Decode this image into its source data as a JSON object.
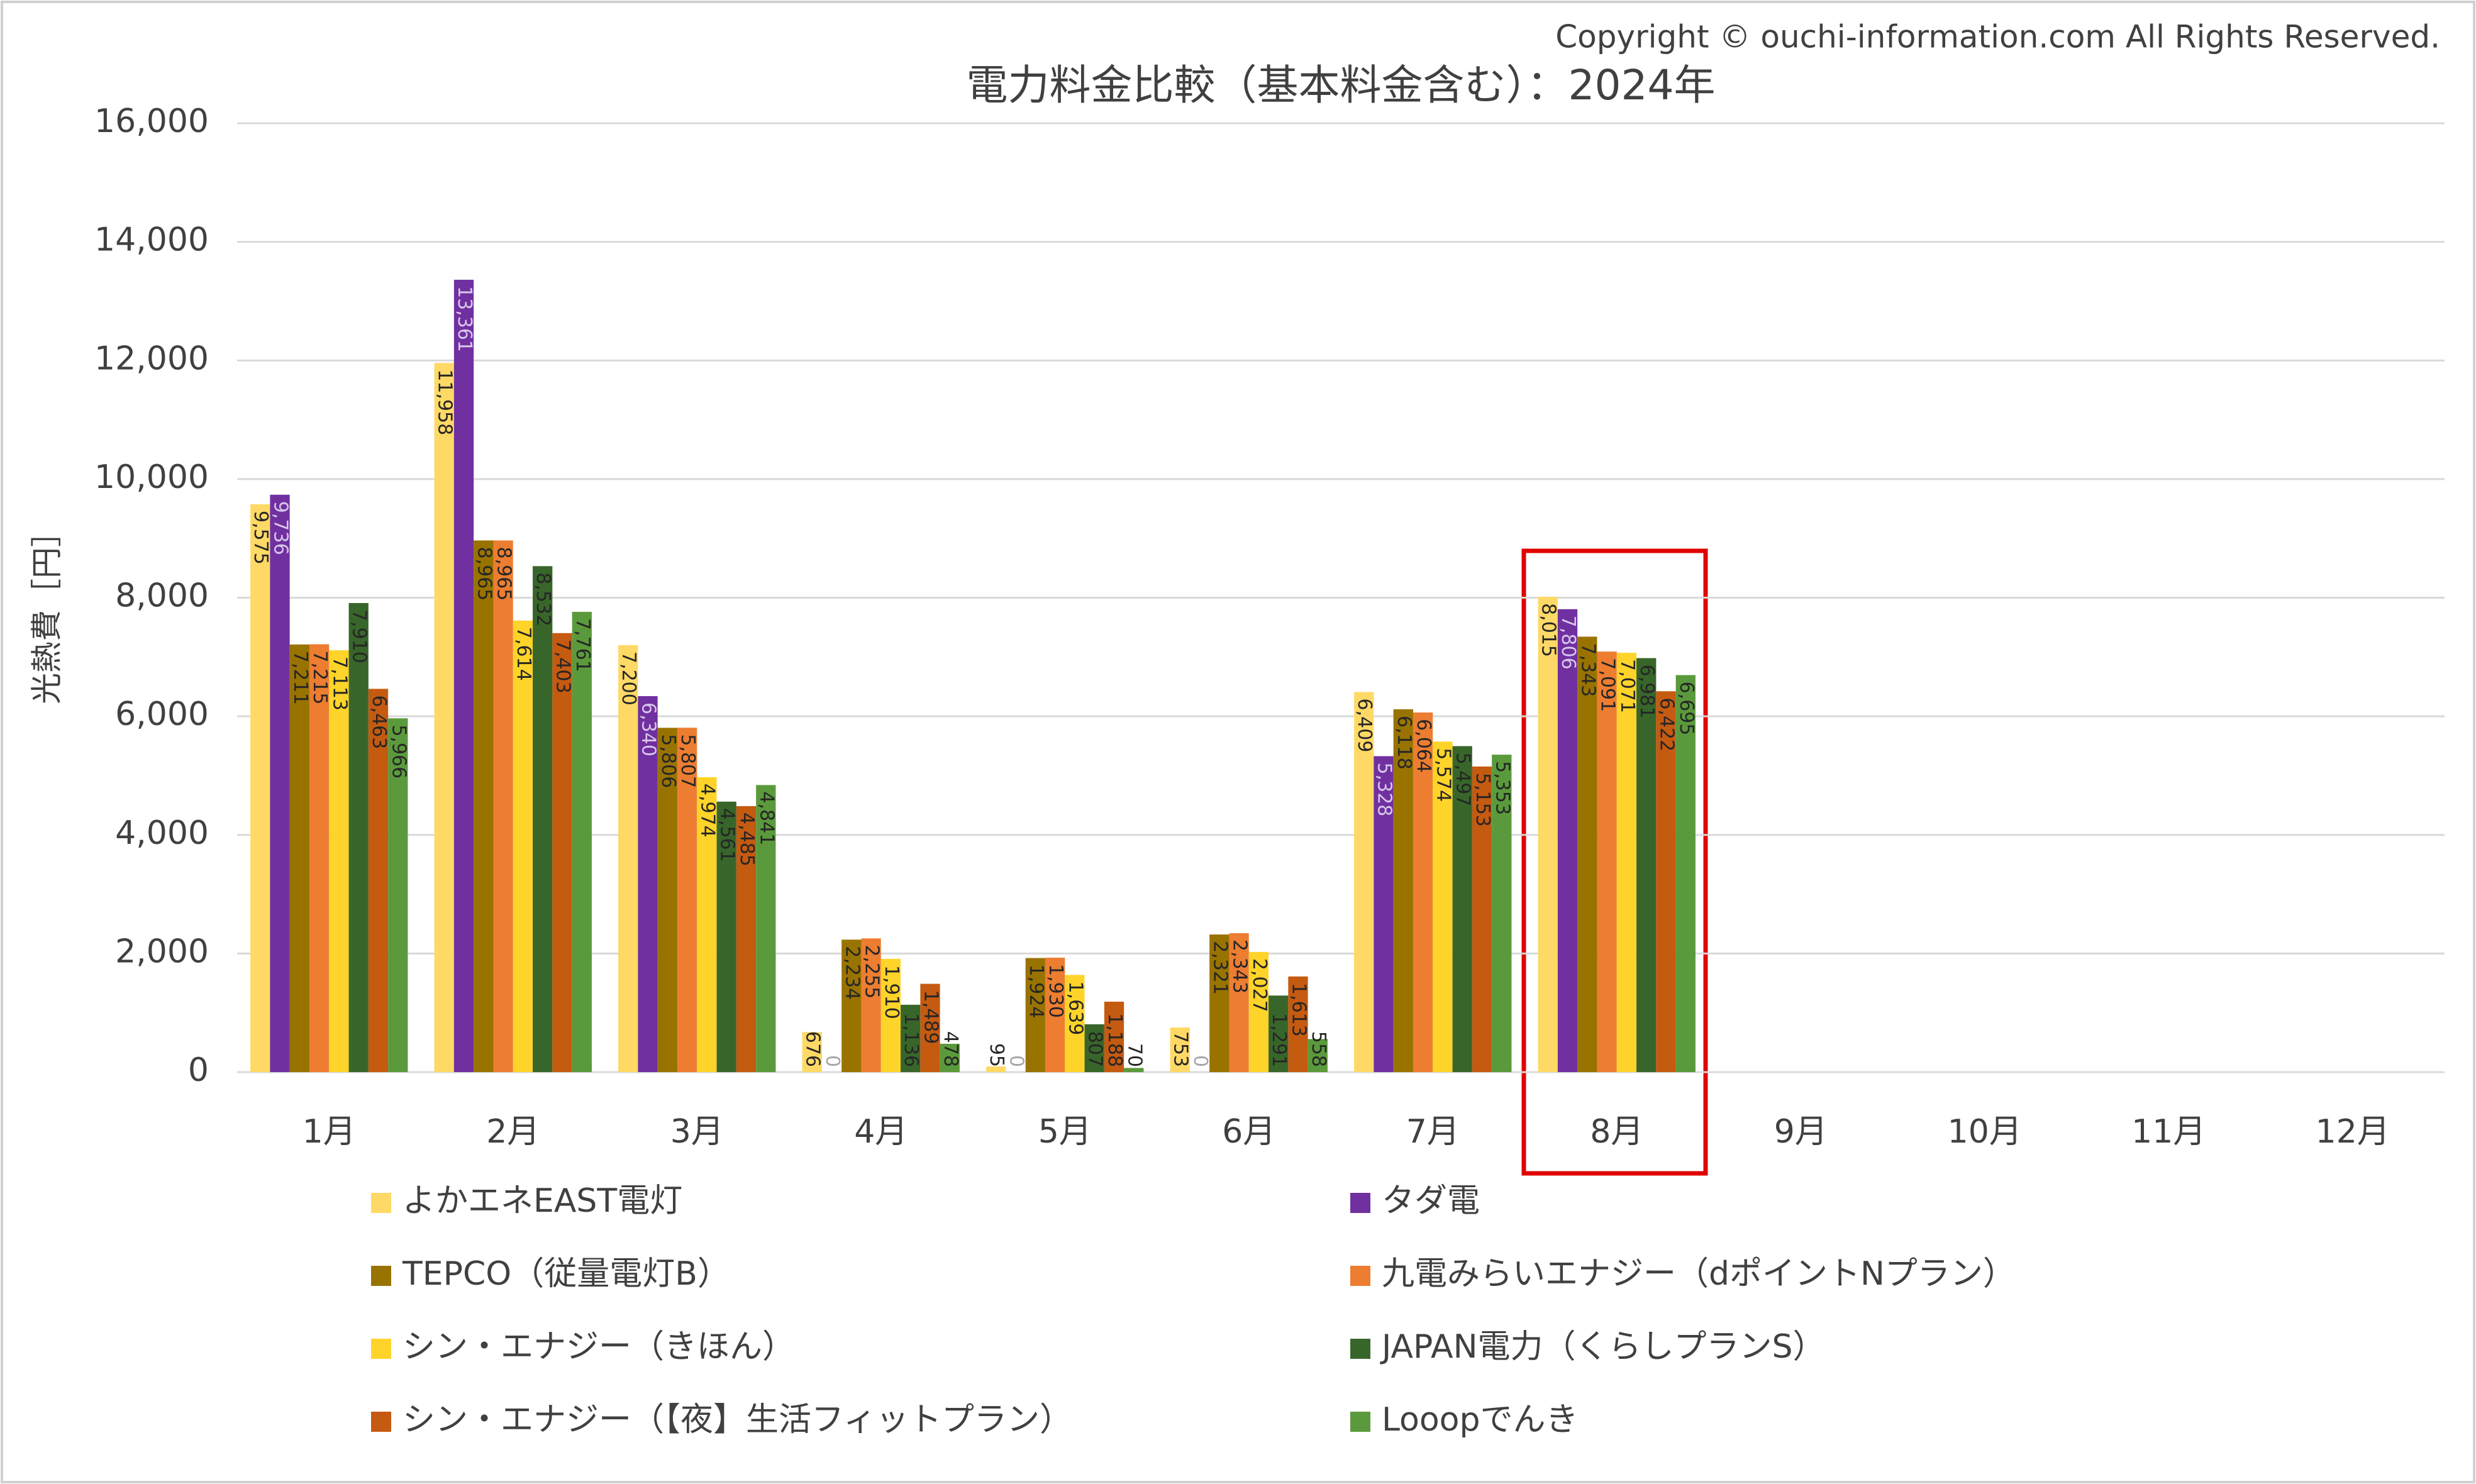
{
  "chart_data": {
    "type": "bar",
    "title": "電力料金比較（基本料金含む）：2024年",
    "copyright": "Copyright © ouchi-information.com All Rights Reserved.",
    "y_label": "光熱費［円］",
    "categories": [
      "1月",
      "2月",
      "3月",
      "4月",
      "5月",
      "6月",
      "7月",
      "8月",
      "9月",
      "10月",
      "11月",
      "12月"
    ],
    "ylim": [
      0,
      16000
    ],
    "yticks": [
      0,
      {
        "value": 2000,
        "label": "2,000"
      },
      {
        "value": 4000,
        "label": "4,000"
      },
      {
        "value": 6000,
        "label": "6,000"
      },
      {
        "value": 8000,
        "label": "8,000"
      },
      {
        "value": 10000,
        "label": "10,000"
      },
      {
        "value": 12000,
        "label": "12,000"
      },
      {
        "value": 14000,
        "label": "14,000"
      },
      {
        "value": 16000,
        "label": "16,000"
      }
    ],
    "grid": true,
    "legend": "bottom",
    "series": [
      {
        "name": "よかエネEAST電灯",
        "color": "#FFD966",
        "values": [
          9575,
          11958,
          7200,
          676,
          95,
          753,
          6409,
          8015,
          null,
          null,
          null,
          null
        ],
        "value_labels": [
          "9,575",
          "11,958",
          "7,200",
          "676",
          "95",
          "753",
          "6,409",
          "8,015",
          null,
          null,
          null,
          null
        ]
      },
      {
        "name": "タダ電",
        "color": "#7030A0",
        "values": [
          9736,
          13361,
          6340,
          0,
          0,
          0,
          5328,
          7806,
          null,
          null,
          null,
          null
        ],
        "value_labels": [
          "9,736",
          "13,361",
          "6,340",
          "0",
          "0",
          "0",
          "5,328",
          "7,806",
          null,
          null,
          null,
          null
        ]
      },
      {
        "name": "TEPCO（従量電灯B）",
        "color": "#997300",
        "values": [
          7211,
          8965,
          5806,
          2234,
          1924,
          2321,
          6118,
          7343,
          null,
          null,
          null,
          null
        ],
        "value_labels": [
          "7,211",
          "8,965",
          "5,806",
          "2,234",
          "1,924",
          "2,321",
          "6,118",
          "7,343",
          null,
          null,
          null,
          null
        ]
      },
      {
        "name": "九電みらいエナジー（dポイントNプラン）",
        "color": "#ED7D31",
        "values": [
          7215,
          8965,
          5807,
          2255,
          1930,
          2343,
          6064,
          7091,
          null,
          null,
          null,
          null
        ],
        "value_labels": [
          "7,215",
          "8,965",
          "5,807",
          "2,255",
          "1,930",
          "2,343",
          "6,064",
          "7,091",
          null,
          null,
          null,
          null
        ]
      },
      {
        "name": "シン・エナジー（きほん）",
        "color": "#FFD42A",
        "values": [
          7113,
          7614,
          4974,
          1910,
          1639,
          2027,
          5574,
          7071,
          null,
          null,
          null,
          null
        ],
        "value_labels": [
          "7,113",
          "7,614",
          "4,974",
          "1,910",
          "1,639",
          "2,027",
          "5,574",
          "7,071",
          null,
          null,
          null,
          null
        ]
      },
      {
        "name": "JAPAN電力（くらしプランS）",
        "color": "#38662A",
        "values": [
          7910,
          8532,
          4561,
          1136,
          807,
          1291,
          5497,
          6981,
          null,
          null,
          null,
          null
        ],
        "value_labels": [
          "7,910",
          "8,532",
          "4,561",
          "1,136",
          "807",
          "1,291",
          "5,497",
          "6,981",
          null,
          null,
          null,
          null
        ]
      },
      {
        "name": "シン・エナジー（【夜】生活フィットプラン）",
        "color": "#C55A11",
        "values": [
          6463,
          7403,
          4485,
          1489,
          1188,
          1613,
          5153,
          6422,
          null,
          null,
          null,
          null
        ],
        "value_labels": [
          "6,463",
          "7,403",
          "4,485",
          "1,489",
          "1,188",
          "1,613",
          "5,153",
          "6,422",
          null,
          null,
          null,
          null
        ]
      },
      {
        "name": "Looopでんき",
        "color": "#5B9A3C",
        "values": [
          5966,
          7761,
          4841,
          478,
          70,
          558,
          5353,
          6695,
          null,
          null,
          null,
          null
        ],
        "value_labels": [
          "5,966",
          "7,761",
          "4,841",
          "478",
          "70",
          "558",
          "5,353",
          "6,695",
          null,
          null,
          null,
          null
        ]
      }
    ]
  }
}
